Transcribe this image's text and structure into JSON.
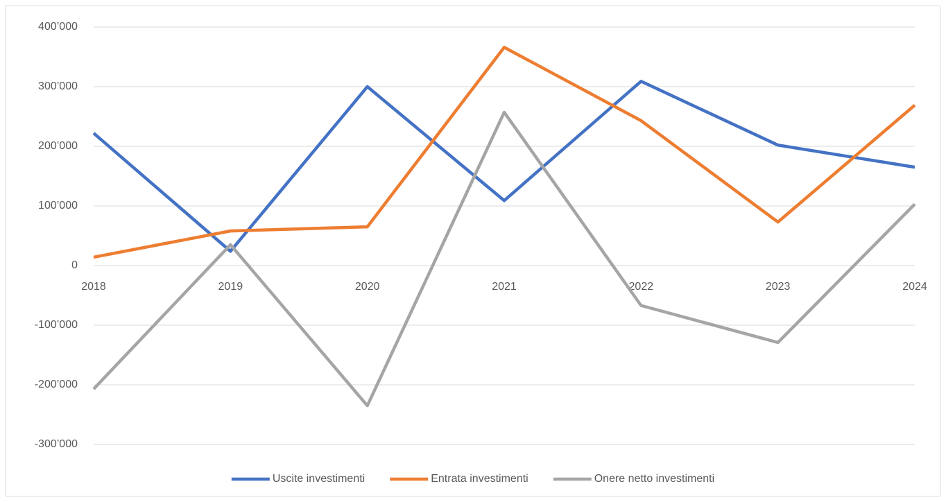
{
  "chart_data": {
    "type": "line",
    "categories": [
      "2018",
      "2019",
      "2020",
      "2021",
      "2022",
      "2023",
      "2024"
    ],
    "series": [
      {
        "name": "Uscite investimenti",
        "color": "#4472c4",
        "values": [
          222000,
          24000,
          300000,
          109000,
          309000,
          202000,
          165000
        ]
      },
      {
        "name": "Entrata investimenti",
        "color": "#ed7d31",
        "values": [
          14000,
          58000,
          65000,
          366000,
          243000,
          73000,
          269000
        ]
      },
      {
        "name": "Onere netto investimenti",
        "color": "#a5a5a5",
        "values": [
          -207000,
          35000,
          -235000,
          257000,
          -67000,
          -129000,
          103000
        ]
      }
    ],
    "ylim": [
      -300000,
      400000
    ],
    "yticks": [
      {
        "value": -300000,
        "label": "-300’000"
      },
      {
        "value": -200000,
        "label": "-200’000"
      },
      {
        "value": -100000,
        "label": "-100’000"
      },
      0,
      {
        "value": 100000,
        "label": "100’000"
      },
      {
        "value": 200000,
        "label": "200’000"
      },
      {
        "value": 300000,
        "label": "300’000"
      },
      {
        "value": 400000,
        "label": "400’000"
      }
    ],
    "grid": true,
    "legend": "bottom"
  }
}
